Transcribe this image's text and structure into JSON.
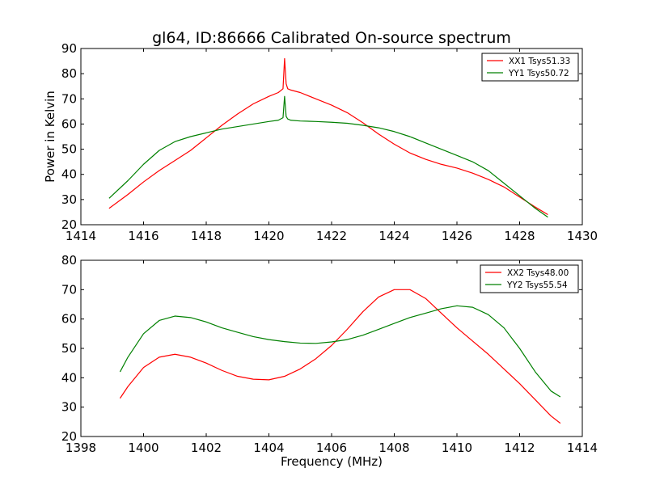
{
  "chart_data": [
    {
      "type": "line",
      "title": "gl64, ID:86666 Calibrated On-source spectrum",
      "xlabel": "",
      "ylabel": "Power in Kelvin",
      "xlim": [
        1414,
        1430
      ],
      "ylim": [
        20,
        90
      ],
      "xticks": [
        "1414",
        "1416",
        "1418",
        "1420",
        "1422",
        "1424",
        "1426",
        "1428",
        "1430"
      ],
      "yticks": [
        "20",
        "30",
        "40",
        "50",
        "60",
        "70",
        "80",
        "90"
      ],
      "legend_position": "top-right",
      "grid": false,
      "series": [
        {
          "name": "XX1 Tsys51.33",
          "color": "#ff0000",
          "x": [
            1414.9,
            1415.5,
            1416.0,
            1416.5,
            1417.0,
            1417.5,
            1418.0,
            1418.5,
            1419.0,
            1419.5,
            1420.0,
            1420.3,
            1420.45,
            1420.5,
            1420.55,
            1420.6,
            1420.7,
            1421.0,
            1421.5,
            1422.0,
            1422.5,
            1423.0,
            1423.5,
            1424.0,
            1424.5,
            1425.0,
            1425.5,
            1426.0,
            1426.5,
            1427.0,
            1427.5,
            1428.0,
            1428.5,
            1428.9
          ],
          "y": [
            26.5,
            32,
            37,
            41.5,
            45.5,
            49.5,
            54.5,
            59.5,
            64,
            68,
            71,
            72.5,
            74,
            86,
            76,
            74,
            73.5,
            72.5,
            70,
            67.5,
            64.5,
            60.5,
            56,
            52,
            48.5,
            46,
            44,
            42.5,
            40.5,
            38,
            35,
            31,
            27,
            24
          ]
        },
        {
          "name": "YY1 Tsys50.72",
          "color": "#008000",
          "x": [
            1414.9,
            1415.5,
            1416.0,
            1416.5,
            1417.0,
            1417.5,
            1418.0,
            1418.5,
            1419.0,
            1419.5,
            1420.0,
            1420.3,
            1420.45,
            1420.5,
            1420.55,
            1420.6,
            1420.7,
            1421.0,
            1421.5,
            1422.0,
            1422.5,
            1423.0,
            1423.5,
            1424.0,
            1424.5,
            1425.0,
            1425.5,
            1426.0,
            1426.5,
            1427.0,
            1427.5,
            1428.0,
            1428.5,
            1428.9
          ],
          "y": [
            30.5,
            37.5,
            44,
            49.5,
            53,
            55,
            56.5,
            58,
            59,
            60,
            61,
            61.5,
            62.5,
            71,
            63,
            62,
            61.5,
            61.2,
            61,
            60.7,
            60.3,
            59.5,
            58.5,
            57,
            55,
            52.5,
            50,
            47.5,
            45,
            41.5,
            36.5,
            31.5,
            26.5,
            23
          ]
        }
      ]
    },
    {
      "type": "line",
      "title": "",
      "xlabel": "Frequency (MHz)",
      "ylabel": "",
      "xlim": [
        1398,
        1414
      ],
      "ylim": [
        20,
        80
      ],
      "xticks": [
        "1398",
        "1400",
        "1402",
        "1404",
        "1406",
        "1408",
        "1410",
        "1412",
        "1414"
      ],
      "yticks": [
        "20",
        "30",
        "40",
        "50",
        "60",
        "70",
        "80"
      ],
      "legend_position": "top-right",
      "grid": false,
      "series": [
        {
          "name": "XX2 Tsys48.00",
          "color": "#ff0000",
          "x": [
            1399.25,
            1399.5,
            1400.0,
            1400.5,
            1401.0,
            1401.5,
            1402.0,
            1402.5,
            1403.0,
            1403.5,
            1404.0,
            1404.5,
            1405.0,
            1405.5,
            1406.0,
            1406.5,
            1407.0,
            1407.5,
            1408.0,
            1408.5,
            1409.0,
            1409.5,
            1410.0,
            1410.5,
            1411.0,
            1411.5,
            1412.0,
            1412.5,
            1413.0,
            1413.3
          ],
          "y": [
            33,
            37,
            43.5,
            47,
            48,
            47,
            45,
            42.5,
            40.5,
            39.5,
            39.3,
            40.5,
            43,
            46.5,
            51,
            56.5,
            62.5,
            67.5,
            70,
            70,
            67,
            62,
            57,
            52.5,
            48,
            43,
            38,
            32.5,
            27,
            24.5
          ]
        },
        {
          "name": "YY2 Tsys55.54",
          "color": "#008000",
          "x": [
            1399.25,
            1399.5,
            1400.0,
            1400.5,
            1401.0,
            1401.5,
            1402.0,
            1402.5,
            1403.0,
            1403.5,
            1404.0,
            1404.5,
            1405.0,
            1405.5,
            1406.0,
            1406.5,
            1407.0,
            1407.5,
            1408.0,
            1408.5,
            1409.0,
            1409.5,
            1410.0,
            1410.5,
            1411.0,
            1411.5,
            1412.0,
            1412.5,
            1413.0,
            1413.3
          ],
          "y": [
            42,
            47,
            55,
            59.5,
            61,
            60.5,
            59,
            57,
            55.5,
            54,
            53,
            52.3,
            51.8,
            51.7,
            52.2,
            53,
            54.5,
            56.5,
            58.5,
            60.5,
            62,
            63.5,
            64.5,
            64,
            61.5,
            57,
            50,
            42,
            35.5,
            33.5
          ]
        }
      ]
    }
  ]
}
